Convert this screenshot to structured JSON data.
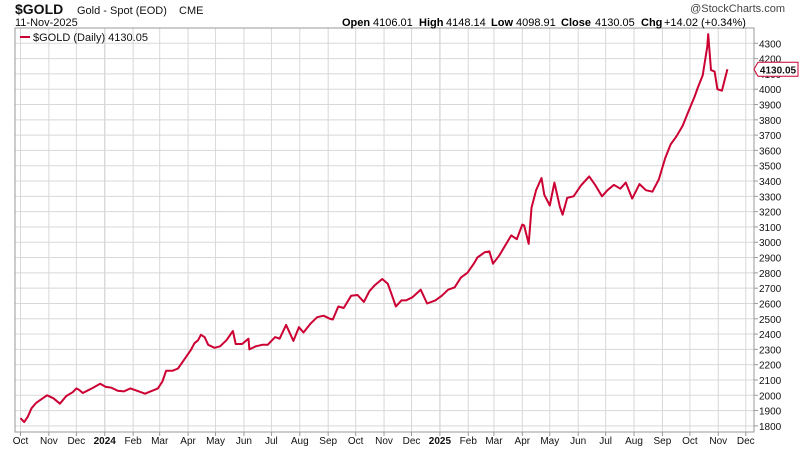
{
  "header": {
    "symbol": "$GOLD",
    "description": "Gold - Spot (EOD)",
    "exchange": "CME",
    "date": "11-Nov-2025",
    "watermark": "@StockCharts.com",
    "ohlc": [
      {
        "label": "Open",
        "value": "4106.01"
      },
      {
        "label": "High",
        "value": "4148.14"
      },
      {
        "label": "Low",
        "value": "4098.91"
      },
      {
        "label": "Close",
        "value": "4130.05"
      },
      {
        "label": "Chg",
        "value": "+14.02 (+0.34%)"
      }
    ]
  },
  "legend": {
    "label": "$GOLD (Daily) 4130.05"
  },
  "colors": {
    "line": "#cc0033",
    "grid": "#d8d8d8",
    "frame": "#9a9a9a",
    "text": "#111111"
  },
  "chart_data": {
    "type": "line",
    "title": "$GOLD Gold - Spot (EOD) CME",
    "ylim": [
      1760,
      4400
    ],
    "y_ticks": [
      1800,
      1900,
      2000,
      2100,
      2200,
      2300,
      2400,
      2500,
      2600,
      2700,
      2800,
      2900,
      3000,
      3100,
      3200,
      3300,
      3400,
      3500,
      3600,
      3700,
      3800,
      3900,
      4000,
      4100,
      4200,
      4300
    ],
    "x_ticks": [
      {
        "label": "Oct",
        "date": "2023-10-01",
        "bold": false
      },
      {
        "label": "Nov",
        "date": "2023-11-01",
        "bold": false
      },
      {
        "label": "Dec",
        "date": "2023-12-01",
        "bold": false
      },
      {
        "label": "2024",
        "date": "2024-01-01",
        "bold": true
      },
      {
        "label": "Feb",
        "date": "2024-02-01",
        "bold": false
      },
      {
        "label": "Mar",
        "date": "2024-03-01",
        "bold": false
      },
      {
        "label": "Apr",
        "date": "2024-04-01",
        "bold": false
      },
      {
        "label": "May",
        "date": "2024-05-01",
        "bold": false
      },
      {
        "label": "Jun",
        "date": "2024-06-01",
        "bold": false
      },
      {
        "label": "Jul",
        "date": "2024-07-01",
        "bold": false
      },
      {
        "label": "Aug",
        "date": "2024-08-01",
        "bold": false
      },
      {
        "label": "Sep",
        "date": "2024-09-01",
        "bold": false
      },
      {
        "label": "Oct",
        "date": "2024-10-01",
        "bold": false
      },
      {
        "label": "Nov",
        "date": "2024-11-01",
        "bold": false
      },
      {
        "label": "Dec",
        "date": "2024-12-01",
        "bold": false
      },
      {
        "label": "2025",
        "date": "2025-01-01",
        "bold": true
      },
      {
        "label": "Feb",
        "date": "2025-02-01",
        "bold": false
      },
      {
        "label": "Mar",
        "date": "2025-03-01",
        "bold": false
      },
      {
        "label": "Apr",
        "date": "2025-04-01",
        "bold": false
      },
      {
        "label": "May",
        "date": "2025-05-01",
        "bold": false
      },
      {
        "label": "Jun",
        "date": "2025-06-01",
        "bold": false
      },
      {
        "label": "Jul",
        "date": "2025-07-01",
        "bold": false
      },
      {
        "label": "Aug",
        "date": "2025-08-01",
        "bold": false
      },
      {
        "label": "Sep",
        "date": "2025-09-01",
        "bold": false
      },
      {
        "label": "Oct",
        "date": "2025-10-01",
        "bold": false
      },
      {
        "label": "Nov",
        "date": "2025-11-01",
        "bold": false
      },
      {
        "label": "Dec",
        "date": "2025-12-01",
        "bold": false
      }
    ],
    "last_value_label": "4130.05",
    "series": [
      {
        "name": "$GOLD (Daily)",
        "x": [
          "2023-10-01",
          "2023-10-05",
          "2023-10-09",
          "2023-10-13",
          "2023-10-18",
          "2023-10-24",
          "2023-10-30",
          "2023-11-06",
          "2023-11-13",
          "2023-11-20",
          "2023-11-27",
          "2023-12-01",
          "2023-12-04",
          "2023-12-08",
          "2023-12-13",
          "2023-12-18",
          "2023-12-27",
          "2024-01-02",
          "2024-01-08",
          "2024-01-15",
          "2024-01-22",
          "2024-01-29",
          "2024-02-05",
          "2024-02-14",
          "2024-02-20",
          "2024-02-28",
          "2024-03-04",
          "2024-03-08",
          "2024-03-15",
          "2024-03-21",
          "2024-03-28",
          "2024-04-04",
          "2024-04-08",
          "2024-04-12",
          "2024-04-15",
          "2024-04-19",
          "2024-04-23",
          "2024-04-30",
          "2024-05-06",
          "2024-05-13",
          "2024-05-20",
          "2024-05-23",
          "2024-05-30",
          "2024-06-06",
          "2024-06-07",
          "2024-06-14",
          "2024-06-21",
          "2024-06-27",
          "2024-07-05",
          "2024-07-10",
          "2024-07-17",
          "2024-07-25",
          "2024-07-31",
          "2024-08-05",
          "2024-08-13",
          "2024-08-20",
          "2024-08-27",
          "2024-09-03",
          "2024-09-06",
          "2024-09-12",
          "2024-09-18",
          "2024-09-26",
          "2024-10-03",
          "2024-10-10",
          "2024-10-16",
          "2024-10-22",
          "2024-10-30",
          "2024-11-05",
          "2024-11-08",
          "2024-11-14",
          "2024-11-20",
          "2024-11-25",
          "2024-12-02",
          "2024-12-11",
          "2024-12-18",
          "2024-12-27",
          "2025-01-03",
          "2025-01-10",
          "2025-01-17",
          "2025-01-24",
          "2025-01-31",
          "2025-02-07",
          "2025-02-11",
          "2025-02-19",
          "2025-02-24",
          "2025-02-28",
          "2025-03-07",
          "2025-03-14",
          "2025-03-20",
          "2025-03-26",
          "2025-04-01",
          "2025-04-03",
          "2025-04-08",
          "2025-04-11",
          "2025-04-16",
          "2025-04-22",
          "2025-04-25",
          "2025-05-01",
          "2025-05-06",
          "2025-05-12",
          "2025-05-15",
          "2025-05-20",
          "2025-05-27",
          "2025-06-04",
          "2025-06-13",
          "2025-06-20",
          "2025-06-27",
          "2025-07-03",
          "2025-07-10",
          "2025-07-17",
          "2025-07-23",
          "2025-07-30",
          "2025-08-07",
          "2025-08-14",
          "2025-08-21",
          "2025-08-28",
          "2025-09-04",
          "2025-09-10",
          "2025-09-16",
          "2025-09-23",
          "2025-09-29",
          "2025-10-06",
          "2025-10-10",
          "2025-10-15",
          "2025-10-20",
          "2025-10-21",
          "2025-10-24",
          "2025-10-28",
          "2025-10-31",
          "2025-11-05",
          "2025-11-11"
        ],
        "y": [
          1850,
          1825,
          1860,
          1915,
          1950,
          1975,
          2000,
          1980,
          1945,
          1995,
          2020,
          2045,
          2035,
          2015,
          2030,
          2045,
          2075,
          2055,
          2050,
          2030,
          2025,
          2045,
          2030,
          2010,
          2025,
          2045,
          2090,
          2160,
          2160,
          2175,
          2235,
          2295,
          2340,
          2360,
          2395,
          2380,
          2330,
          2310,
          2320,
          2360,
          2420,
          2335,
          2335,
          2370,
          2300,
          2320,
          2330,
          2330,
          2380,
          2370,
          2460,
          2355,
          2445,
          2410,
          2470,
          2510,
          2520,
          2500,
          2495,
          2580,
          2570,
          2650,
          2655,
          2610,
          2680,
          2720,
          2760,
          2730,
          2680,
          2580,
          2620,
          2620,
          2640,
          2690,
          2600,
          2620,
          2650,
          2690,
          2705,
          2770,
          2800,
          2860,
          2900,
          2935,
          2940,
          2860,
          2915,
          2985,
          3045,
          3020,
          3115,
          3110,
          2990,
          3225,
          3340,
          3420,
          3310,
          3240,
          3390,
          3230,
          3180,
          3290,
          3300,
          3370,
          3430,
          3370,
          3300,
          3340,
          3375,
          3350,
          3390,
          3285,
          3380,
          3340,
          3330,
          3410,
          3550,
          3640,
          3690,
          3760,
          3850,
          3950,
          4015,
          4090,
          4280,
          4360,
          4125,
          4115,
          4000,
          3990,
          4130.05
        ]
      }
    ]
  }
}
